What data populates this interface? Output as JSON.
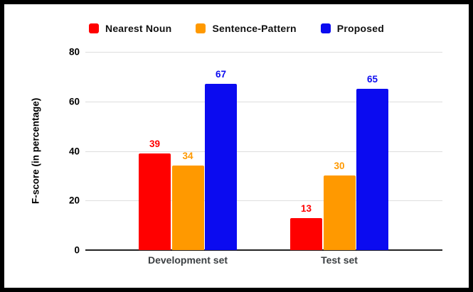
{
  "frame": {
    "border_color": "#000000",
    "background_color": "#ffffff"
  },
  "chart_data": {
    "type": "bar",
    "title": "",
    "xlabel": "",
    "ylabel": "F-score (in percentage)",
    "categories": [
      "Development set",
      "Test set"
    ],
    "series": [
      {
        "name": "Nearest Noun",
        "color": "#ff0000",
        "values": [
          39,
          13
        ]
      },
      {
        "name": "Sentence-Pattern",
        "color": "#ff9900",
        "values": [
          34,
          30
        ]
      },
      {
        "name": "Proposed",
        "color": "#0b0bf0",
        "values": [
          67,
          65
        ]
      }
    ],
    "ylim": [
      0,
      80
    ],
    "yticks": [
      0,
      20,
      40,
      60,
      80
    ],
    "grid": true,
    "gridline_color": "#dedede",
    "axis_line_color": "#222222",
    "legend_position": "top",
    "value_labels": true
  }
}
